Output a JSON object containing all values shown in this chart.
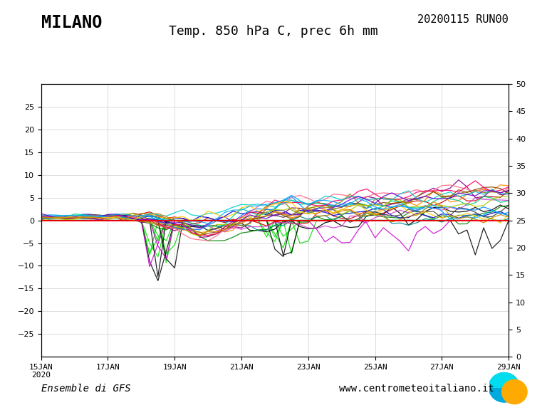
{
  "title_left": "MILANO",
  "title_right": "20200115 RUN00",
  "subtitle": "Temp. 850 hPa C, prec 6h mm",
  "ylim_left": [
    -30,
    30
  ],
  "ylim_right": [
    0,
    50
  ],
  "background_color": "#ffffff",
  "grid_color": "#bbbbbb",
  "footer_left": "Ensemble di GFS",
  "footer_right": "www.centrometeoitaliano.it",
  "n_steps": 57,
  "tick_labels_x": [
    "15JAN\n2020",
    "17JAN",
    "19JAN",
    "21JAN",
    "23JAN",
    "25JAN",
    "27JAN",
    "29JAN"
  ],
  "tick_positions_x": [
    0,
    2,
    4,
    6,
    8,
    10,
    12,
    14
  ],
  "temp_colors": [
    "#000000",
    "#cc0000",
    "#008800",
    "#0000cc",
    "#ff8800",
    "#880088",
    "#008888",
    "#888800",
    "#cc44cc",
    "#00cc88",
    "#444444",
    "#884400",
    "#0088ff",
    "#ff6688",
    "#aacc00",
    "#ff0066",
    "#00cccc",
    "#6600cc",
    "#ffcc00",
    "#00aaff",
    "#cc8800",
    "#ff4400",
    "#44cc00"
  ],
  "prec_colors_map": {
    "green": "#00dd00",
    "black": "#000000",
    "magenta": "#cc00cc"
  }
}
